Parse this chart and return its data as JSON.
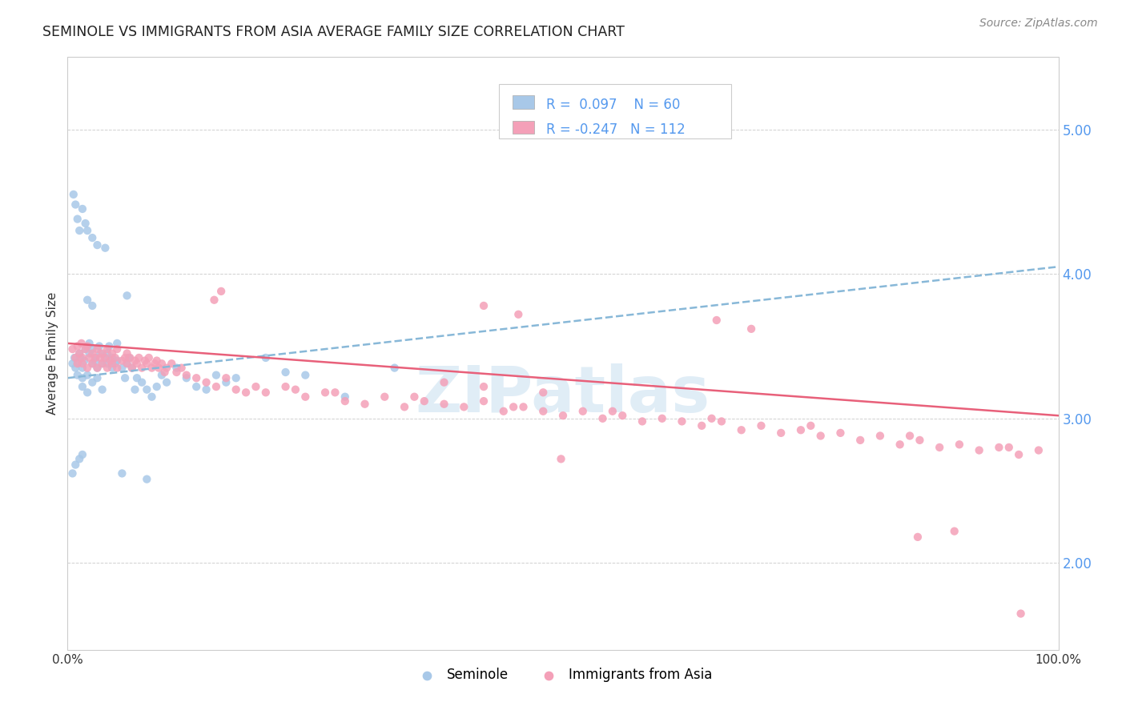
{
  "title": "SEMINOLE VS IMMIGRANTS FROM ASIA AVERAGE FAMILY SIZE CORRELATION CHART",
  "source": "Source: ZipAtlas.com",
  "ylabel": "Average Family Size",
  "legend_label1": "Seminole",
  "legend_label2": "Immigrants from Asia",
  "R1": 0.097,
  "N1": 60,
  "R2": -0.247,
  "N2": 112,
  "color1": "#a8c8e8",
  "color2": "#f4a0b8",
  "line_color1": "#88b8d8",
  "line_color2": "#e8607a",
  "right_tick_color": "#5599ee",
  "yticks_right": [
    2.0,
    3.0,
    4.0,
    5.0
  ],
  "ylim": [
    1.4,
    5.5
  ],
  "xlim": [
    0.0,
    1.0
  ],
  "watermark": "ZIPatlas",
  "blue_line_x0": 0.0,
  "blue_line_y0": 3.28,
  "blue_line_x1": 1.0,
  "blue_line_y1": 4.05,
  "pink_line_x0": 0.0,
  "pink_line_y0": 3.52,
  "pink_line_x1": 1.0,
  "pink_line_y1": 3.02,
  "seminole_x": [
    0.005,
    0.007,
    0.008,
    0.01,
    0.01,
    0.012,
    0.013,
    0.015,
    0.015,
    0.015,
    0.017,
    0.018,
    0.02,
    0.02,
    0.022,
    0.022,
    0.025,
    0.025,
    0.025,
    0.028,
    0.028,
    0.03,
    0.03,
    0.032,
    0.033,
    0.035,
    0.035,
    0.038,
    0.04,
    0.04,
    0.042,
    0.045,
    0.045,
    0.048,
    0.05,
    0.05,
    0.055,
    0.058,
    0.06,
    0.062,
    0.065,
    0.068,
    0.07,
    0.075,
    0.08,
    0.085,
    0.09,
    0.095,
    0.1,
    0.11,
    0.12,
    0.13,
    0.14,
    0.15,
    0.16,
    0.17,
    0.22,
    0.24,
    0.28,
    0.33
  ],
  "seminole_y": [
    3.38,
    3.42,
    3.35,
    3.38,
    3.3,
    3.45,
    3.42,
    3.28,
    3.35,
    3.22,
    3.4,
    3.48,
    3.3,
    3.18,
    3.52,
    3.45,
    3.48,
    3.38,
    3.25,
    3.4,
    3.42,
    3.35,
    3.28,
    3.5,
    3.45,
    3.38,
    3.2,
    3.42,
    3.45,
    3.38,
    3.5,
    3.42,
    3.35,
    3.38,
    3.4,
    3.52,
    3.35,
    3.28,
    3.38,
    3.42,
    3.35,
    3.2,
    3.28,
    3.25,
    3.2,
    3.15,
    3.22,
    3.3,
    3.25,
    3.35,
    3.28,
    3.22,
    3.2,
    3.3,
    3.25,
    3.28,
    3.32,
    3.3,
    3.15,
    3.35
  ],
  "seminole_outliers_x": [
    0.006,
    0.008,
    0.01,
    0.012,
    0.015,
    0.018,
    0.02,
    0.025,
    0.03,
    0.038,
    0.005,
    0.008,
    0.012,
    0.015,
    0.055,
    0.02,
    0.025,
    0.06,
    0.08,
    0.2
  ],
  "seminole_outliers_y": [
    4.55,
    4.48,
    4.38,
    4.3,
    4.45,
    4.35,
    4.3,
    4.25,
    4.2,
    4.18,
    2.62,
    2.68,
    2.72,
    2.75,
    2.62,
    3.82,
    3.78,
    3.85,
    2.58,
    3.42
  ],
  "asia_x_dense": [
    0.005,
    0.008,
    0.01,
    0.01,
    0.012,
    0.014,
    0.015,
    0.015,
    0.018,
    0.02,
    0.02,
    0.022,
    0.025,
    0.025,
    0.028,
    0.03,
    0.03,
    0.033,
    0.035,
    0.035,
    0.038,
    0.04,
    0.04,
    0.043,
    0.045,
    0.045,
    0.048,
    0.05,
    0.05,
    0.055,
    0.058,
    0.06,
    0.06,
    0.063,
    0.065,
    0.068,
    0.07,
    0.072,
    0.075,
    0.078,
    0.08,
    0.082,
    0.085,
    0.088,
    0.09,
    0.092,
    0.095,
    0.098,
    0.1,
    0.105,
    0.11,
    0.115,
    0.12,
    0.13,
    0.14,
    0.15,
    0.16,
    0.17,
    0.18,
    0.19
  ],
  "asia_y_dense": [
    3.48,
    3.42,
    3.5,
    3.38,
    3.45,
    3.52,
    3.38,
    3.42,
    3.48,
    3.35,
    3.5,
    3.42,
    3.45,
    3.38,
    3.42,
    3.48,
    3.35,
    3.42,
    3.38,
    3.45,
    3.42,
    3.48,
    3.35,
    3.4,
    3.45,
    3.38,
    3.42,
    3.35,
    3.48,
    3.4,
    3.42,
    3.38,
    3.45,
    3.42,
    3.35,
    3.4,
    3.38,
    3.42,
    3.35,
    3.4,
    3.38,
    3.42,
    3.35,
    3.38,
    3.4,
    3.35,
    3.38,
    3.32,
    3.35,
    3.38,
    3.32,
    3.35,
    3.3,
    3.28,
    3.25,
    3.22,
    3.28,
    3.2,
    3.18,
    3.22
  ],
  "asia_x_sparse": [
    0.2,
    0.22,
    0.24,
    0.26,
    0.28,
    0.3,
    0.32,
    0.34,
    0.36,
    0.38,
    0.4,
    0.42,
    0.44,
    0.46,
    0.48,
    0.5,
    0.52,
    0.54,
    0.56,
    0.58,
    0.6,
    0.62,
    0.64,
    0.66,
    0.68,
    0.7,
    0.72,
    0.74,
    0.76,
    0.78,
    0.8,
    0.82,
    0.84,
    0.86,
    0.88,
    0.9,
    0.92,
    0.94,
    0.96,
    0.98,
    0.23,
    0.27,
    0.35,
    0.45,
    0.55,
    0.65,
    0.75,
    0.85,
    0.95,
    0.38,
    0.42,
    0.48
  ],
  "asia_y_sparse": [
    3.18,
    3.22,
    3.15,
    3.18,
    3.12,
    3.1,
    3.15,
    3.08,
    3.12,
    3.1,
    3.08,
    3.12,
    3.05,
    3.08,
    3.05,
    3.02,
    3.05,
    3.0,
    3.02,
    2.98,
    3.0,
    2.98,
    2.95,
    2.98,
    2.92,
    2.95,
    2.9,
    2.92,
    2.88,
    2.9,
    2.85,
    2.88,
    2.82,
    2.85,
    2.8,
    2.82,
    2.78,
    2.8,
    2.75,
    2.78,
    3.2,
    3.18,
    3.15,
    3.08,
    3.05,
    3.0,
    2.95,
    2.88,
    2.8,
    3.25,
    3.22,
    3.18
  ],
  "asia_outliers_x": [
    0.155,
    0.148,
    0.42,
    0.455,
    0.498,
    0.655,
    0.69,
    0.858,
    0.895,
    0.962
  ],
  "asia_outliers_y": [
    3.88,
    3.82,
    3.78,
    3.72,
    2.72,
    3.68,
    3.62,
    2.18,
    2.22,
    1.65
  ]
}
